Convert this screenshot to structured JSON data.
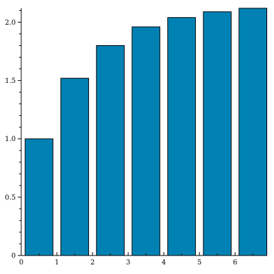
{
  "chart_data": {
    "type": "bar",
    "title": "",
    "xlabel": "",
    "ylabel": "",
    "x": [
      0.5,
      1.5,
      2.5,
      3.5,
      4.5,
      5.5,
      6.5
    ],
    "values": [
      1.0,
      1.52,
      1.8,
      1.96,
      2.04,
      2.09,
      2.12
    ],
    "bar_width": 0.78,
    "xlim": [
      0,
      6.9
    ],
    "ylim": [
      0,
      2.12
    ],
    "xticks": [
      0,
      1,
      2,
      3,
      4,
      5,
      6
    ],
    "xtick_labels": [
      "0",
      "1",
      "2",
      "3",
      "4",
      "5",
      "6"
    ],
    "yticks": [
      0,
      0.5,
      1.0,
      1.5,
      2.0
    ],
    "ytick_labels": [
      "0",
      "0.5",
      "1.0",
      "1.5",
      "2.0"
    ],
    "bar_color": "#0081b4",
    "edge_color": "#000000",
    "grid": false,
    "legend": "none"
  }
}
